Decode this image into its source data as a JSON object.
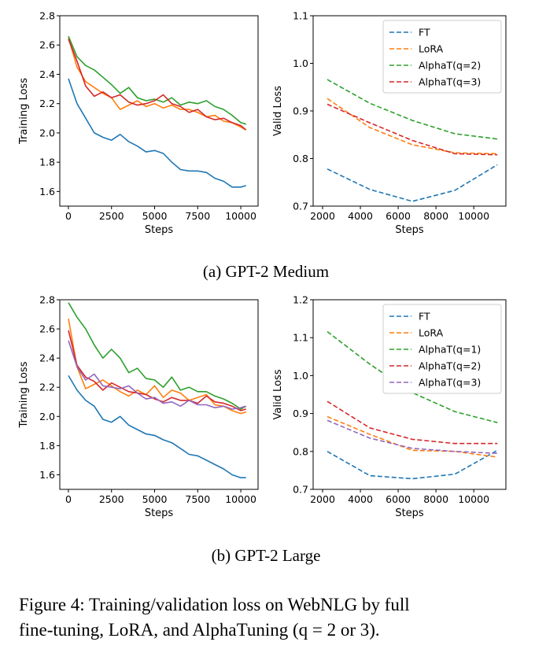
{
  "colors": {
    "FT": "#1f77b4",
    "LoRA": "#ff7f0e",
    "AlphaT(q=1)": "#2ca02c",
    "AlphaT(q=2)": "#d62728",
    "AlphaT(q=3)": "#9467bd"
  },
  "chart_data": [
    {
      "type": "line",
      "panel": "GPT-2 Medium",
      "xlabel": "Steps",
      "ylabel": "Training Loss",
      "xlim": [
        -500,
        11000
      ],
      "ylim": [
        1.5,
        2.8
      ],
      "xticks": [
        "0",
        "2500",
        "5000",
        "7500",
        "10000"
      ],
      "xtick_values": [
        0,
        2500,
        5000,
        7500,
        10000
      ],
      "yticks": [
        "1.6",
        "1.8",
        "2.0",
        "2.2",
        "2.4",
        "2.6",
        "2.8"
      ],
      "ytick_values": [
        1.6,
        1.8,
        2.0,
        2.2,
        2.4,
        2.6,
        2.8
      ],
      "legend": false,
      "series": [
        {
          "color_key": "FT",
          "x": [
            0,
            500,
            1000,
            1500,
            2000,
            2500,
            3000,
            3500,
            4000,
            4500,
            5000,
            5500,
            6000,
            6500,
            7000,
            7500,
            8000,
            8500,
            9000,
            9500,
            10000,
            10300
          ],
          "y": [
            2.37,
            2.2,
            2.1,
            2.0,
            1.97,
            1.95,
            1.99,
            1.94,
            1.91,
            1.87,
            1.88,
            1.86,
            1.8,
            1.75,
            1.74,
            1.74,
            1.73,
            1.69,
            1.67,
            1.63,
            1.63,
            1.64
          ]
        },
        {
          "color_key": "LoRA",
          "x": [
            0,
            500,
            1000,
            1500,
            2000,
            2500,
            3000,
            3500,
            4000,
            4500,
            5000,
            5500,
            6000,
            6500,
            7000,
            7500,
            8000,
            8500,
            9000,
            9500,
            10000,
            10300
          ],
          "y": [
            2.65,
            2.45,
            2.35,
            2.31,
            2.27,
            2.24,
            2.16,
            2.19,
            2.22,
            2.18,
            2.2,
            2.17,
            2.19,
            2.16,
            2.16,
            2.14,
            2.11,
            2.12,
            2.08,
            2.07,
            2.04,
            2.02
          ]
        },
        {
          "color_key": "AlphaT(q=1)",
          "x": [
            0,
            500,
            1000,
            1500,
            2000,
            2500,
            3000,
            3500,
            4000,
            4500,
            5000,
            5500,
            6000,
            6500,
            7000,
            7500,
            8000,
            8500,
            9000,
            9500,
            10000,
            10300
          ],
          "y": [
            2.66,
            2.52,
            2.46,
            2.43,
            2.38,
            2.33,
            2.27,
            2.31,
            2.24,
            2.22,
            2.23,
            2.21,
            2.24,
            2.19,
            2.21,
            2.2,
            2.22,
            2.18,
            2.16,
            2.12,
            2.07,
            2.06
          ]
        },
        {
          "color_key": "AlphaT(q=2)",
          "x": [
            0,
            500,
            1000,
            1500,
            2000,
            2500,
            3000,
            3500,
            4000,
            4500,
            5000,
            5500,
            6000,
            6500,
            7000,
            7500,
            8000,
            8500,
            9000,
            9500,
            10000,
            10300
          ],
          "y": [
            2.64,
            2.49,
            2.32,
            2.25,
            2.28,
            2.24,
            2.26,
            2.21,
            2.19,
            2.2,
            2.22,
            2.26,
            2.2,
            2.18,
            2.14,
            2.16,
            2.11,
            2.09,
            2.1,
            2.07,
            2.05,
            2.02
          ]
        }
      ]
    },
    {
      "type": "line",
      "panel": "GPT-2 Medium",
      "xlabel": "Steps",
      "ylabel": "Valid Loss",
      "xlim": [
        1500,
        11700
      ],
      "ylim": [
        0.7,
        1.1
      ],
      "xticks": [
        "2000",
        "4000",
        "6000",
        "8000",
        "10000"
      ],
      "xtick_values": [
        2000,
        4000,
        6000,
        8000,
        10000
      ],
      "yticks": [
        "0.7",
        "0.8",
        "0.9",
        "1.0",
        "1.1"
      ],
      "ytick_values": [
        0.7,
        0.8,
        0.9,
        1.0,
        1.1
      ],
      "legend": "top-right",
      "series": [
        {
          "name": "FT",
          "color_key": "FT",
          "x": [
            2250,
            4500,
            6750,
            9000,
            11250
          ],
          "y": [
            0.778,
            0.735,
            0.71,
            0.733,
            0.787
          ]
        },
        {
          "name": "LoRA",
          "color_key": "LoRA",
          "x": [
            2250,
            4500,
            6750,
            9000,
            11250
          ],
          "y": [
            0.926,
            0.865,
            0.829,
            0.812,
            0.81
          ]
        },
        {
          "name": "AlphaT(q=2)",
          "color_key": "AlphaT(q=1)",
          "x": [
            2250,
            4500,
            6750,
            9000,
            11250
          ],
          "y": [
            0.966,
            0.916,
            0.88,
            0.852,
            0.841
          ]
        },
        {
          "name": "AlphaT(q=3)",
          "color_key": "AlphaT(q=2)",
          "x": [
            2250,
            4500,
            6750,
            9000,
            11250
          ],
          "y": [
            0.914,
            0.875,
            0.838,
            0.81,
            0.808
          ]
        }
      ]
    },
    {
      "type": "line",
      "panel": "GPT-2 Large",
      "xlabel": "Steps",
      "ylabel": "Training Loss",
      "xlim": [
        -500,
        11000
      ],
      "ylim": [
        1.5,
        2.8
      ],
      "xticks": [
        "0",
        "2500",
        "5000",
        "7500",
        "10000"
      ],
      "xtick_values": [
        0,
        2500,
        5000,
        7500,
        10000
      ],
      "yticks": [
        "1.6",
        "1.8",
        "2.0",
        "2.2",
        "2.4",
        "2.6",
        "2.8"
      ],
      "ytick_values": [
        1.6,
        1.8,
        2.0,
        2.2,
        2.4,
        2.6,
        2.8
      ],
      "legend": false,
      "series": [
        {
          "color_key": "FT",
          "x": [
            0,
            500,
            1000,
            1500,
            2000,
            2500,
            3000,
            3500,
            4000,
            4500,
            5000,
            5500,
            6000,
            6500,
            7000,
            7500,
            8000,
            8500,
            9000,
            9500,
            10000,
            10300
          ],
          "y": [
            2.28,
            2.18,
            2.11,
            2.07,
            1.98,
            1.96,
            2.0,
            1.94,
            1.91,
            1.88,
            1.87,
            1.84,
            1.82,
            1.78,
            1.74,
            1.73,
            1.7,
            1.67,
            1.64,
            1.6,
            1.58,
            1.58
          ]
        },
        {
          "color_key": "LoRA",
          "x": [
            0,
            500,
            1000,
            1500,
            2000,
            2500,
            3000,
            3500,
            4000,
            4500,
            5000,
            5500,
            6000,
            6500,
            7000,
            7500,
            8000,
            8500,
            9000,
            9500,
            10000,
            10300
          ],
          "y": [
            2.67,
            2.34,
            2.19,
            2.22,
            2.25,
            2.21,
            2.17,
            2.14,
            2.18,
            2.15,
            2.21,
            2.13,
            2.18,
            2.16,
            2.11,
            2.13,
            2.15,
            2.08,
            2.07,
            2.04,
            2.02,
            2.03
          ]
        },
        {
          "color_key": "AlphaT(q=1)",
          "x": [
            0,
            500,
            1000,
            1500,
            2000,
            2500,
            3000,
            3500,
            4000,
            4500,
            5000,
            5500,
            6000,
            6500,
            7000,
            7500,
            8000,
            8500,
            9000,
            9500,
            10000,
            10300
          ],
          "y": [
            2.78,
            2.68,
            2.6,
            2.49,
            2.4,
            2.46,
            2.4,
            2.3,
            2.33,
            2.26,
            2.25,
            2.2,
            2.27,
            2.18,
            2.2,
            2.17,
            2.17,
            2.14,
            2.12,
            2.09,
            2.05,
            2.07
          ]
        },
        {
          "color_key": "AlphaT(q=2)",
          "x": [
            0,
            500,
            1000,
            1500,
            2000,
            2500,
            3000,
            3500,
            4000,
            4500,
            5000,
            5500,
            6000,
            6500,
            7000,
            7500,
            8000,
            8500,
            9000,
            9500,
            10000,
            10300
          ],
          "y": [
            2.59,
            2.35,
            2.27,
            2.24,
            2.18,
            2.23,
            2.2,
            2.17,
            2.16,
            2.15,
            2.12,
            2.1,
            2.13,
            2.11,
            2.11,
            2.09,
            2.14,
            2.1,
            2.09,
            2.07,
            2.04,
            2.05
          ]
        },
        {
          "color_key": "AlphaT(q=3)",
          "x": [
            0,
            500,
            1000,
            1500,
            2000,
            2500,
            3000,
            3500,
            4000,
            4500,
            5000,
            5500,
            6000,
            6500,
            7000,
            7500,
            8000,
            8500,
            9000,
            9500,
            10000,
            10300
          ],
          "y": [
            2.52,
            2.34,
            2.25,
            2.29,
            2.21,
            2.2,
            2.19,
            2.21,
            2.16,
            2.12,
            2.13,
            2.09,
            2.1,
            2.07,
            2.11,
            2.08,
            2.08,
            2.06,
            2.07,
            2.05,
            2.06,
            2.07
          ]
        }
      ]
    },
    {
      "type": "line",
      "panel": "GPT-2 Large",
      "xlabel": "Steps",
      "ylabel": "Valid Loss",
      "xlim": [
        1500,
        11700
      ],
      "ylim": [
        0.7,
        1.2
      ],
      "xticks": [
        "2000",
        "4000",
        "6000",
        "8000",
        "10000"
      ],
      "xtick_values": [
        2000,
        4000,
        6000,
        8000,
        10000
      ],
      "yticks": [
        "0.7",
        "0.8",
        "0.9",
        "1.0",
        "1.1",
        "1.2"
      ],
      "ytick_values": [
        0.7,
        0.8,
        0.9,
        1.0,
        1.1,
        1.2
      ],
      "legend": "top-right",
      "series": [
        {
          "name": "FT",
          "color_key": "FT",
          "x": [
            2250,
            4500,
            6750,
            9000,
            11250
          ],
          "y": [
            0.8,
            0.736,
            0.728,
            0.74,
            0.803
          ]
        },
        {
          "name": "LoRA",
          "color_key": "LoRA",
          "x": [
            2250,
            4500,
            6750,
            9000,
            11250
          ],
          "y": [
            0.892,
            0.845,
            0.803,
            0.8,
            0.785
          ]
        },
        {
          "name": "AlphaT(q=1)",
          "color_key": "AlphaT(q=1)",
          "x": [
            2250,
            4500,
            6750,
            9000,
            11250
          ],
          "y": [
            1.116,
            1.03,
            0.955,
            0.905,
            0.876
          ]
        },
        {
          "name": "AlphaT(q=2)",
          "color_key": "AlphaT(q=2)",
          "x": [
            2250,
            4500,
            6750,
            9000,
            11250
          ],
          "y": [
            0.932,
            0.862,
            0.832,
            0.821,
            0.821
          ]
        },
        {
          "name": "AlphaT(q=3)",
          "color_key": "AlphaT(q=3)",
          "x": [
            2250,
            4500,
            6750,
            9000,
            11250
          ],
          "y": [
            0.882,
            0.835,
            0.808,
            0.8,
            0.795
          ]
        }
      ]
    }
  ],
  "subcaptions": {
    "a": "(a) GPT-2 Medium",
    "b": "(b) GPT-2 Large"
  },
  "caption": {
    "line1": "Figure 4: Training/validation loss on WebNLG by full",
    "line2": "fine-tuning, LoRA, and AlphaTuning (q = 2 or 3)."
  }
}
